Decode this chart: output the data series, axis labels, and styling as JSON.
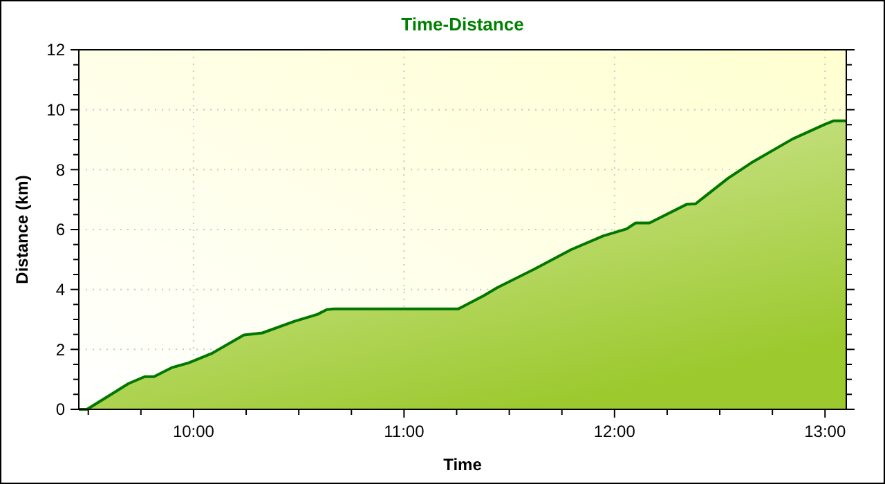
{
  "chart_data": {
    "type": "area",
    "title": "Time-Distance",
    "xlabel": "Time",
    "ylabel": "Distance (km)",
    "xlim": [
      9.455,
      13.101
    ],
    "xticks": [
      {
        "value": 9.5,
        "label": null
      },
      {
        "value": 9.75,
        "label": null
      },
      {
        "value": 10,
        "label": "10:00"
      },
      {
        "value": 10.25,
        "label": null
      },
      {
        "value": 10.5,
        "label": null
      },
      {
        "value": 10.75,
        "label": null
      },
      {
        "value": 11,
        "label": "11:00"
      },
      {
        "value": 11.25,
        "label": null
      },
      {
        "value": 11.5,
        "label": null
      },
      {
        "value": 11.75,
        "label": null
      },
      {
        "value": 12,
        "label": "12:00"
      },
      {
        "value": 12.25,
        "label": null
      },
      {
        "value": 12.5,
        "label": null
      },
      {
        "value": 12.75,
        "label": null
      },
      {
        "value": 13,
        "label": "13:00"
      }
    ],
    "ylim": [
      0,
      12
    ],
    "yticks": [
      0,
      {
        "value": 0.5,
        "label": null
      },
      {
        "value": 1,
        "label": null
      },
      {
        "value": 1.5,
        "label": null
      },
      2,
      {
        "value": 2.5,
        "label": null
      },
      {
        "value": 3,
        "label": null
      },
      {
        "value": 3.5,
        "label": null
      },
      4,
      {
        "value": 4.5,
        "label": null
      },
      {
        "value": 5,
        "label": null
      },
      {
        "value": 5.5,
        "label": null
      },
      6,
      {
        "value": 6.5,
        "label": null
      },
      {
        "value": 7,
        "label": null
      },
      {
        "value": 7.5,
        "label": null
      },
      8,
      {
        "value": 8.5,
        "label": null
      },
      {
        "value": 9,
        "label": null
      },
      {
        "value": 9.5,
        "label": null
      },
      10,
      {
        "value": 10.5,
        "label": null
      },
      {
        "value": 11,
        "label": null
      },
      {
        "value": 11.5,
        "label": null
      },
      12
    ],
    "grid": true,
    "x": [
      9.455,
      9.494,
      9.604,
      9.691,
      9.768,
      9.812,
      9.9,
      9.976,
      10.085,
      10.239,
      10.327,
      10.48,
      10.589,
      10.633,
      10.666,
      11.258,
      11.378,
      11.443,
      11.619,
      11.794,
      11.947,
      12.057,
      12.1,
      12.166,
      12.342,
      12.385,
      12.539,
      12.648,
      12.845,
      12.999,
      13.042,
      13.101
    ],
    "series": [
      {
        "color": "#007800",
        "values": [
          0,
          0,
          0.48,
          0.86,
          1.09,
          1.09,
          1.4,
          1.55,
          1.86,
          2.48,
          2.55,
          2.94,
          3.17,
          3.33,
          3.35,
          3.35,
          3.79,
          4.06,
          4.68,
          5.33,
          5.79,
          6.02,
          6.22,
          6.22,
          6.84,
          6.86,
          7.71,
          8.22,
          9.02,
          9.51,
          9.63,
          9.63
        ]
      }
    ]
  }
}
